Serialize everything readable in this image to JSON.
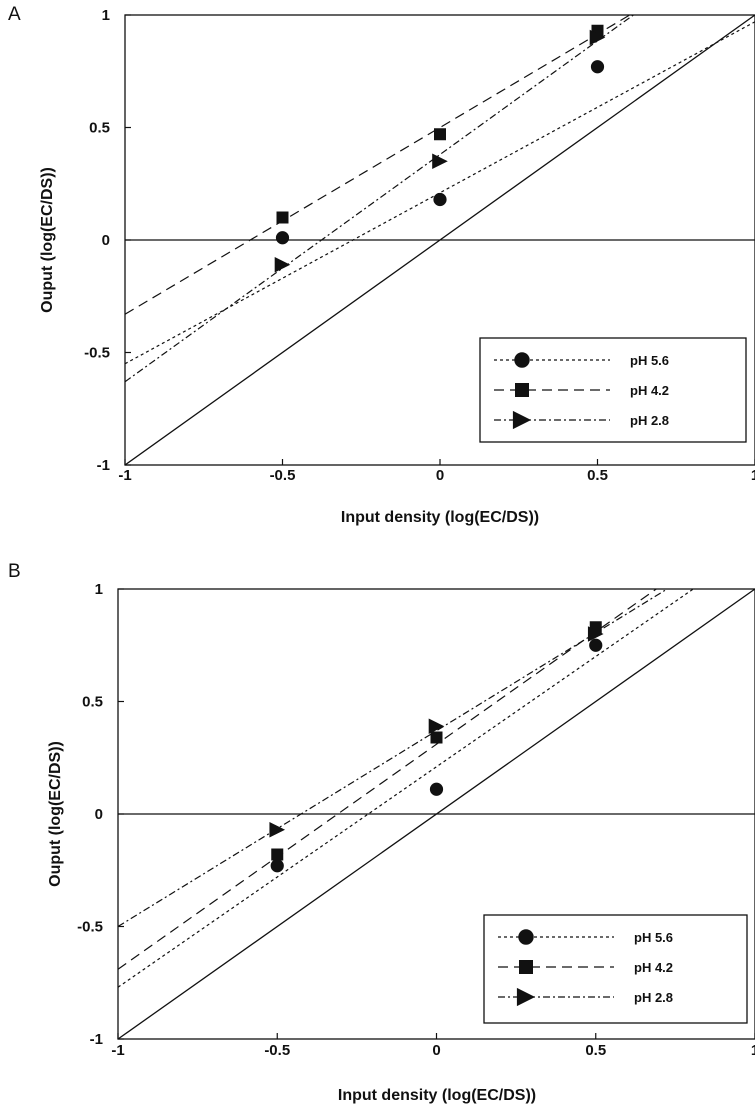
{
  "chart_data": [
    {
      "type": "scatter",
      "panel_label": "A",
      "xlabel": "Input density (log(EC/DS))",
      "ylabel": "Ouput (log(EC/DS))",
      "xlim": [
        -1,
        1
      ],
      "ylim": [
        -1,
        1
      ],
      "x_ticks": [
        -1,
        -0.5,
        0,
        0.5,
        1
      ],
      "x_tick_labels": [
        "-1",
        "-0.5",
        "0",
        "0.5",
        "1"
      ],
      "y_ticks": [
        -1,
        -0.5,
        0,
        0.5,
        1
      ],
      "y_tick_labels": [
        "-1",
        "-0.5",
        "0",
        "0.5",
        "1"
      ],
      "reference_lines": [
        "y = x",
        "y = 0"
      ],
      "grid": false,
      "legend_position": "bottom-right",
      "series": [
        {
          "name": "pH 5.6",
          "marker": "circle",
          "line": "dotted",
          "x": [
            -0.5,
            0,
            0.5
          ],
          "y": [
            0.01,
            0.18,
            0.77
          ],
          "fit": {
            "intercept": 0.21,
            "slope": 0.76
          }
        },
        {
          "name": "pH 4.2",
          "marker": "square",
          "line": "dashed",
          "x": [
            -0.5,
            0,
            0.5
          ],
          "y": [
            0.1,
            0.47,
            0.93
          ],
          "fit": {
            "intercept": 0.5,
            "slope": 0.83
          }
        },
        {
          "name": "pH 2.8",
          "marker": "triangle-right",
          "line": "dash-dot",
          "x": [
            -0.5,
            0,
            0.5
          ],
          "y": [
            -0.11,
            0.35,
            0.9
          ],
          "fit": {
            "intercept": 0.38,
            "slope": 1.01
          }
        }
      ]
    },
    {
      "type": "scatter",
      "panel_label": "B",
      "xlabel": "Input density (log(EC/DS))",
      "ylabel": "Ouput (log(EC/DS))",
      "xlim": [
        -1,
        1
      ],
      "ylim": [
        -1,
        1
      ],
      "x_ticks": [
        -1,
        -0.5,
        0,
        0.5,
        1
      ],
      "x_tick_labels": [
        "-1",
        "-0.5",
        "0",
        "0.5",
        "1"
      ],
      "y_ticks": [
        -1,
        -0.5,
        0,
        0.5,
        1
      ],
      "y_tick_labels": [
        "-1",
        "-0.5",
        "0",
        "0.5",
        "1"
      ],
      "reference_lines": [
        "y = x",
        "y = 0"
      ],
      "grid": false,
      "legend_position": "bottom-right",
      "series": [
        {
          "name": "pH 5.6",
          "marker": "circle",
          "line": "dotted",
          "x": [
            -0.5,
            0,
            0.5
          ],
          "y": [
            -0.23,
            0.11,
            0.75
          ],
          "fit": {
            "intercept": 0.21,
            "slope": 0.98
          }
        },
        {
          "name": "pH 4.2",
          "marker": "square",
          "line": "dashed",
          "x": [
            -0.5,
            0,
            0.5
          ],
          "y": [
            -0.18,
            0.34,
            0.83
          ],
          "fit": {
            "intercept": 0.31,
            "slope": 1.0
          }
        },
        {
          "name": "pH 2.8",
          "marker": "triangle-right",
          "line": "dash-dot",
          "x": [
            -0.5,
            0,
            0.5
          ],
          "y": [
            -0.07,
            0.39,
            0.8
          ],
          "fit": {
            "intercept": 0.37,
            "slope": 0.87
          }
        }
      ]
    }
  ]
}
